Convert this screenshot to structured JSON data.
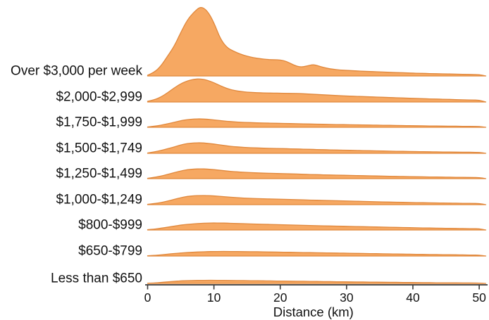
{
  "figure": {
    "background": "#ffffff",
    "area_fill": "#F6A862",
    "area_stroke": "#E0873B",
    "axis_color": "#3a3a3a",
    "text_color": "#111111"
  },
  "chart_data": {
    "type": "area",
    "subtype": "ridgeline-density",
    "title": "",
    "xlabel": "Distance (km)",
    "ylabel": "",
    "xlim": [
      0,
      51
    ],
    "x_ticks": [
      0,
      10,
      20,
      30,
      40,
      50
    ],
    "grid": false,
    "legend": false,
    "values_unit": "relative density height (chart pixels above each category baseline)",
    "x": [
      0,
      1,
      2,
      3,
      4,
      5,
      6,
      7,
      8,
      9,
      10,
      11,
      12,
      13,
      14,
      15,
      16,
      17,
      18,
      19,
      20,
      21,
      22,
      23,
      24,
      25,
      26,
      27,
      28,
      29,
      30,
      31,
      32,
      33,
      34,
      35,
      36,
      37,
      38,
      39,
      40,
      41,
      42,
      43,
      44,
      45,
      46,
      47,
      48,
      49,
      50,
      51
    ],
    "categories": [
      "Over $3,000 per week",
      "$2,000-$2,999",
      "$1,750-$1,999",
      "$1,500-$1,749",
      "$1,250-$1,499",
      "$1,000-$1,249",
      "$800-$999",
      "$650-$799",
      "Less than $650"
    ],
    "series": [
      {
        "name": "Over $3,000 per week",
        "values": [
          1,
          5,
          14,
          28,
          42,
          62,
          80,
          91,
          99,
          93,
          76,
          52,
          40,
          35,
          31,
          28,
          26,
          24.5,
          23.5,
          23,
          23,
          20.5,
          15.5,
          12.5,
          14,
          16.5,
          13.5,
          11,
          9.5,
          8.5,
          8,
          7.5,
          7,
          6.5,
          6.2,
          5.8,
          5.4,
          5,
          4.7,
          4.4,
          4.1,
          3.8,
          3.6,
          3.3,
          3.1,
          2.9,
          2.7,
          2.5,
          2.3,
          2.1,
          2,
          0
        ]
      },
      {
        "name": "$2,000-$2,999",
        "values": [
          1,
          3,
          7,
          13,
          20,
          26,
          30,
          32.5,
          33,
          31,
          27.5,
          23,
          19,
          16.5,
          15,
          14,
          13.5,
          13,
          12.8,
          12.6,
          12.5,
          12.3,
          12.2,
          12,
          11.5,
          11,
          10.5,
          10,
          9.5,
          9,
          8.5,
          8.2,
          7.8,
          7.5,
          7.2,
          6.8,
          6.5,
          6.2,
          5.8,
          5.5,
          5.2,
          4.9,
          4.6,
          4.3,
          4,
          3.8,
          3.5,
          3.2,
          3,
          2.8,
          2.6,
          0
        ]
      },
      {
        "name": "$1,750-$1,999",
        "values": [
          0.5,
          1.5,
          3,
          5,
          7,
          9.5,
          11,
          11.8,
          12,
          11.5,
          10.5,
          9.5,
          8.5,
          7.8,
          7.2,
          6.8,
          6.5,
          6.2,
          6,
          5.8,
          5.6,
          5.4,
          5.2,
          5,
          4.8,
          4.6,
          4.4,
          4.2,
          4,
          3.9,
          3.7,
          3.6,
          3.4,
          3.3,
          3.1,
          3,
          2.9,
          2.7,
          2.6,
          2.4,
          2.3,
          2.2,
          2,
          1.9,
          1.8,
          1.7,
          1.6,
          1.5,
          1.4,
          1.3,
          1.2,
          0
        ]
      },
      {
        "name": "$1,500-$1,749",
        "values": [
          0.5,
          2,
          4,
          6.5,
          9,
          12,
          14,
          14.8,
          15,
          14.3,
          13.2,
          11.8,
          10.5,
          9.5,
          8.8,
          8.2,
          7.8,
          7.5,
          7.2,
          7,
          6.8,
          6.6,
          6.3,
          6,
          5.8,
          5.5,
          5.3,
          5,
          4.8,
          4.6,
          4.4,
          4.2,
          4,
          3.8,
          3.6,
          3.4,
          3.2,
          3,
          2.9,
          2.7,
          2.6,
          2.4,
          2.3,
          2.1,
          2,
          1.9,
          1.8,
          1.7,
          1.6,
          1.5,
          1.4,
          0
        ]
      },
      {
        "name": "$1,250-$1,499",
        "values": [
          0.5,
          1.8,
          3.5,
          6,
          8.5,
          11,
          12.8,
          13.7,
          14,
          13.6,
          12.8,
          11.8,
          10.8,
          10,
          9.3,
          8.8,
          8.4,
          8,
          7.7,
          7.4,
          7.2,
          7,
          6.7,
          6.4,
          6.1,
          5.8,
          5.6,
          5.3,
          5.1,
          4.9,
          4.7,
          4.5,
          4.3,
          4.1,
          3.9,
          3.7,
          3.5,
          3.3,
          3.1,
          3,
          2.8,
          2.7,
          2.5,
          2.4,
          2.3,
          2.1,
          2,
          1.9,
          1.8,
          1.7,
          1.6,
          0
        ]
      },
      {
        "name": "$1,000-$1,249",
        "values": [
          0.5,
          1.5,
          3,
          5,
          7.5,
          10,
          11.8,
          12.7,
          13,
          13,
          12.5,
          11.8,
          11,
          10.3,
          9.7,
          9.2,
          8.8,
          8.5,
          8.2,
          8,
          7.7,
          7.5,
          7.2,
          7,
          6.7,
          6.4,
          6.2,
          6,
          5.8,
          5.5,
          5.3,
          5,
          4.8,
          4.5,
          4.3,
          4,
          3.8,
          3.6,
          3.4,
          3.2,
          3,
          2.9,
          2.7,
          2.6,
          2.4,
          2.3,
          2.1,
          2,
          1.9,
          1.8,
          1.7,
          0
        ]
      },
      {
        "name": "$800-$999",
        "values": [
          0.5,
          1.2,
          2.5,
          4,
          5.5,
          7,
          8,
          8.8,
          9.4,
          9.8,
          10,
          9.9,
          9.7,
          9.4,
          9.1,
          8.8,
          8.5,
          8.2,
          8,
          7.7,
          7.5,
          7.2,
          7,
          6.8,
          6.5,
          6.3,
          6,
          5.8,
          5.6,
          5.4,
          5.2,
          5,
          4.8,
          4.6,
          4.4,
          4.2,
          4,
          3.8,
          3.6,
          3.4,
          3.2,
          3,
          2.9,
          2.7,
          2.6,
          2.4,
          2.3,
          2.1,
          2,
          1.9,
          1.8,
          0
        ]
      },
      {
        "name": "$650-$799",
        "values": [
          0.3,
          0.8,
          1.6,
          2.6,
          3.5,
          4.3,
          5,
          5.5,
          5.9,
          6.2,
          6.4,
          6.5,
          6.5,
          6.4,
          6.3,
          6.2,
          6.1,
          6,
          5.8,
          5.7,
          5.5,
          5.4,
          5.2,
          5,
          4.9,
          4.7,
          4.6,
          4.4,
          4.3,
          4.1,
          4,
          3.8,
          3.7,
          3.5,
          3.4,
          3.2,
          3.1,
          2.9,
          2.8,
          2.6,
          2.5,
          2.4,
          2.2,
          2.1,
          2,
          1.9,
          1.8,
          1.6,
          1.5,
          1.4,
          1.3,
          0
        ]
      },
      {
        "name": "Less than $650",
        "values": [
          0.3,
          0.7,
          1.4,
          2.2,
          3,
          3.6,
          4,
          4.3,
          4.4,
          4.5,
          4.5,
          4.4,
          4.3,
          4.2,
          4.1,
          4,
          3.9,
          3.8,
          3.6,
          3.5,
          3.4,
          3.3,
          3.2,
          3.1,
          3,
          2.9,
          2.7,
          2.6,
          2.5,
          2.4,
          2.3,
          2.2,
          2.1,
          2,
          1.9,
          1.8,
          1.7,
          1.6,
          1.5,
          1.4,
          1.3,
          1.2,
          1.1,
          1,
          0.9,
          0.9,
          0.8,
          0.8,
          0.7,
          0.7,
          0.6,
          0
        ]
      }
    ]
  }
}
